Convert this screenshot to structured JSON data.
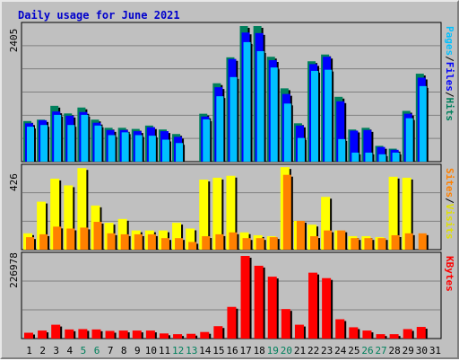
{
  "title": "Daily usage for June 2021",
  "colors": {
    "hits": "#00805c",
    "files": "#0000ff",
    "pages": "#00c0ff",
    "visits": "#ffff00",
    "sites": "#ff8000",
    "kbytes": "#ff0000",
    "weekend_day": "#00805c",
    "weekday": "#000000",
    "panel_bg": "#c0c0c0"
  },
  "side_labels": {
    "pages": "Pages",
    "files": "Files",
    "hits": "Hits",
    "sites": "Sites",
    "visits": "Visits",
    "kbytes": "KBytes",
    "sep": "/"
  },
  "chart_data": [
    {
      "type": "bar",
      "name": "hits-files-pages",
      "max_label": "2405",
      "ylim": [
        0,
        2405
      ],
      "categories": [
        "1",
        "2",
        "3",
        "4",
        "5",
        "6",
        "7",
        "8",
        "9",
        "10",
        "11",
        "12",
        "13",
        "14",
        "15",
        "16",
        "17",
        "18",
        "19",
        "20",
        "21",
        "22",
        "23",
        "24",
        "25",
        "26",
        "27",
        "28",
        "29",
        "30",
        "31"
      ],
      "weekend_days": [
        "5",
        "6",
        "12",
        "13",
        "19",
        "20",
        "26",
        "27"
      ],
      "series": [
        {
          "name": "Hits",
          "values": [
            720,
            745,
            990,
            855,
            960,
            745,
            600,
            600,
            580,
            640,
            570,
            490,
            0,
            850,
            1390,
            1850,
            2405,
            2405,
            1860,
            1300,
            680,
            1780,
            1900,
            1150,
            570,
            600,
            280,
            230,
            900,
            1560,
            0
          ]
        },
        {
          "name": "Files",
          "values": [
            680,
            735,
            890,
            815,
            880,
            690,
            560,
            560,
            540,
            610,
            540,
            440,
            0,
            800,
            1320,
            1820,
            2290,
            2280,
            1800,
            1200,
            640,
            1730,
            1860,
            1070,
            550,
            560,
            260,
            210,
            850,
            1490,
            0
          ]
        },
        {
          "name": "Pages",
          "values": [
            620,
            650,
            830,
            650,
            830,
            640,
            470,
            520,
            470,
            460,
            390,
            330,
            0,
            750,
            1160,
            1500,
            2120,
            1960,
            1670,
            1030,
            420,
            1610,
            1630,
            400,
            160,
            160,
            130,
            160,
            770,
            1340,
            0
          ]
        }
      ]
    },
    {
      "type": "bar",
      "name": "visits-sites",
      "max_label": "426",
      "ylim": [
        0,
        426
      ],
      "categories": [
        "1",
        "2",
        "3",
        "4",
        "5",
        "6",
        "7",
        "8",
        "9",
        "10",
        "11",
        "12",
        "13",
        "14",
        "15",
        "16",
        "17",
        "18",
        "19",
        "20",
        "21",
        "22",
        "23",
        "24",
        "25",
        "26",
        "27",
        "28",
        "29",
        "30",
        "31"
      ],
      "series": [
        {
          "name": "Visits",
          "values": [
            85,
            250,
            370,
            335,
            425,
            230,
            140,
            160,
            100,
            100,
            100,
            140,
            110,
            365,
            375,
            385,
            90,
            75,
            70,
            430,
            150,
            130,
            275,
            100,
            70,
            70,
            65,
            380,
            375,
            0,
            0
          ]
        },
        {
          "name": "Sites",
          "values": [
            65,
            80,
            120,
            110,
            115,
            145,
            85,
            80,
            80,
            80,
            60,
            60,
            40,
            70,
            80,
            90,
            60,
            60,
            65,
            390,
            150,
            70,
            100,
            100,
            60,
            60,
            60,
            75,
            85,
            85,
            0
          ]
        }
      ]
    },
    {
      "type": "bar",
      "name": "kbytes",
      "max_label": "226978",
      "ylim": [
        0,
        226978
      ],
      "categories": [
        "1",
        "2",
        "3",
        "4",
        "5",
        "6",
        "7",
        "8",
        "9",
        "10",
        "11",
        "12",
        "13",
        "14",
        "15",
        "16",
        "17",
        "18",
        "19",
        "20",
        "21",
        "22",
        "23",
        "24",
        "25",
        "26",
        "27",
        "28",
        "29",
        "30",
        "31"
      ],
      "series": [
        {
          "name": "KBytes",
          "values": [
            16000,
            22000,
            38000,
            25000,
            26000,
            25000,
            21000,
            22000,
            22000,
            22000,
            14000,
            12000,
            13000,
            18000,
            34000,
            87000,
            226978,
            200000,
            170000,
            81000,
            38000,
            181000,
            166000,
            53000,
            31000,
            22000,
            12000,
            12000,
            26000,
            32000,
            0
          ]
        }
      ]
    }
  ]
}
